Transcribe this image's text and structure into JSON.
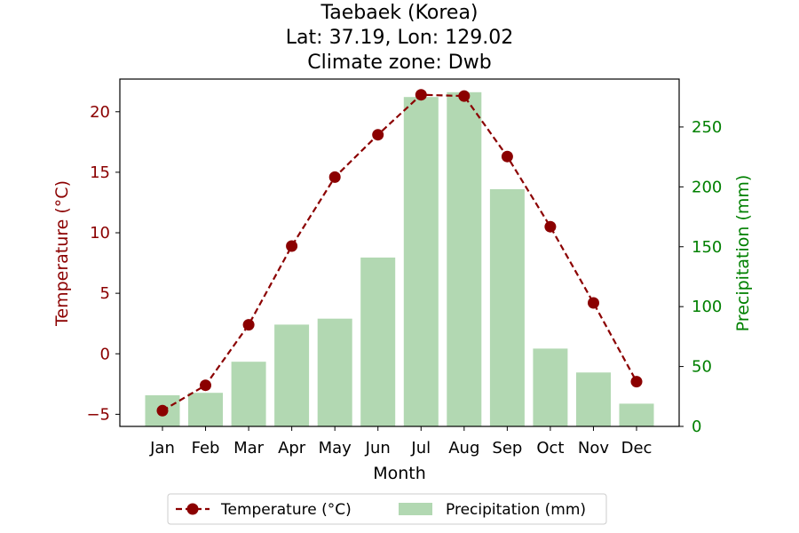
{
  "chart_data": {
    "type": "bar",
    "title_lines": [
      "Taebaek (Korea)",
      "Lat: 37.19, Lon: 129.02",
      "Climate zone: Dwb"
    ],
    "xlabel": "Month",
    "ylabel_left": "Temperature (°C)",
    "ylabel_right": "Precipitation (mm)",
    "categories": [
      "Jan",
      "Feb",
      "Mar",
      "Apr",
      "May",
      "Jun",
      "Jul",
      "Aug",
      "Sep",
      "Oct",
      "Nov",
      "Dec"
    ],
    "y_left_lim": [
      -6,
      22.7
    ],
    "y_left_ticks": [
      -5,
      0,
      5,
      10,
      15,
      20
    ],
    "y_left_tick_labels": [
      "−5",
      "0",
      "5",
      "10",
      "15",
      "20"
    ],
    "y_right_lim": [
      0,
      290
    ],
    "y_right_ticks": [
      0,
      50,
      100,
      150,
      200,
      250
    ],
    "y_right_tick_labels": [
      "0",
      "50",
      "100",
      "150",
      "200",
      "250"
    ],
    "grid": false,
    "legend_placement": "bottom-center",
    "series": [
      {
        "name": "Temperature (°C)",
        "type": "line",
        "axis": "left",
        "style": "dashed-with-circle-markers",
        "color": "#8b0000",
        "values": [
          -4.7,
          -2.6,
          2.4,
          8.9,
          14.6,
          18.1,
          21.4,
          21.3,
          16.3,
          10.5,
          4.2,
          -2.3
        ]
      },
      {
        "name": "Precipitation (mm)",
        "type": "bar",
        "axis": "right",
        "color": "#b2d8b2",
        "values": [
          26,
          28,
          54,
          85,
          90,
          141,
          275,
          279,
          198,
          65,
          45,
          19
        ]
      }
    ],
    "colors": {
      "temperature_axis": "#8b0000",
      "precipitation_axis": "#008000",
      "text": "#000000"
    }
  }
}
